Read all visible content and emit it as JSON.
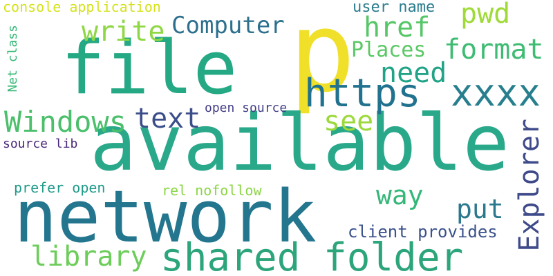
{
  "cloud": {
    "words": [
      {
        "text": "p",
        "color": "#f0e02a"
      },
      {
        "text": "file",
        "color": "#25a884"
      },
      {
        "text": "available",
        "color": "#2aa88a"
      },
      {
        "text": "network",
        "color": "#23768e"
      },
      {
        "text": "shared folder",
        "color": "#2da57b"
      },
      {
        "text": "https",
        "color": "#21728e"
      },
      {
        "text": "xxxx",
        "color": "#277f8e"
      },
      {
        "text": "Windows",
        "color": "#4bbf6b"
      },
      {
        "text": "text",
        "color": "#3c4e8a"
      },
      {
        "text": "format",
        "color": "#3fbc73"
      },
      {
        "text": "Computer",
        "color": "#2d708e"
      },
      {
        "text": "write",
        "color": "#8fd744"
      },
      {
        "text": "href",
        "color": "#56c667"
      },
      {
        "text": "pwd",
        "color": "#a0da39"
      },
      {
        "text": "need",
        "color": "#20a386"
      },
      {
        "text": "Places",
        "color": "#5ac864"
      },
      {
        "text": "see",
        "color": "#9cd93b"
      },
      {
        "text": "Explorer",
        "color": "#3e4a89"
      },
      {
        "text": "way",
        "color": "#35b779"
      },
      {
        "text": "put",
        "color": "#2a788e"
      },
      {
        "text": "library",
        "color": "#6ccd5a"
      },
      {
        "text": "client provides",
        "color": "#3b528b"
      },
      {
        "text": "user name",
        "color": "#2c7d8e"
      },
      {
        "text": "console application",
        "color": "#d5e21a"
      },
      {
        "text": "open source",
        "color": "#433e85"
      },
      {
        "text": "Net class",
        "color": "#38b977"
      },
      {
        "text": "source lib",
        "color": "#482677"
      },
      {
        "text": "prefer open",
        "color": "#1f9a8a"
      },
      {
        "text": "rel nofollow",
        "color": "#8bd646"
      }
    ]
  }
}
